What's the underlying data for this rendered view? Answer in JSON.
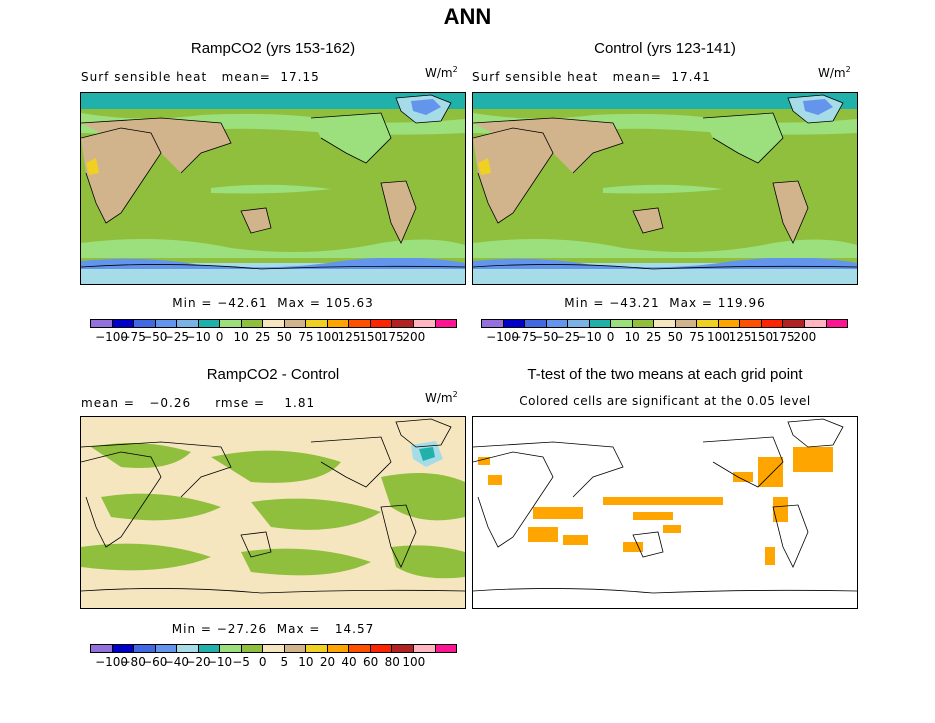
{
  "title": "ANN",
  "panels": {
    "ramp": {
      "title": "RampCO2 (yrs 153-162)",
      "label": "Surf sensible heat   mean=  17.15",
      "units": "W/m",
      "units_exp": "2",
      "minmax": "Min = −42.61  Max = 105.63"
    },
    "control": {
      "title": "Control (yrs 123-141)",
      "label": "Surf sensible heat   mean=  17.41",
      "units": "W/m",
      "units_exp": "2",
      "minmax": "Min = −43.21  Max = 119.96"
    },
    "diff": {
      "title": "RampCO2 - Control",
      "label": "mean =   −0.26     rmse =    1.81",
      "units": "W/m",
      "units_exp": "2",
      "minmax": "Min = −27.26  Max =   14.57"
    },
    "ttest": {
      "title": "T-test of the two means at each grid point",
      "subtitle": "Colored cells are significant at the 0.05 level"
    }
  },
  "colorbars": {
    "field": {
      "colors": [
        "#9370db",
        "#0000c8",
        "#4169e1",
        "#6495ed",
        "#7ab2e6",
        "#20b2aa",
        "#9be07c",
        "#8fbf3c",
        "#f5e6c0",
        "#d2b48c",
        "#f0d020",
        "#ffa500",
        "#ff5000",
        "#ff2400",
        "#b22222",
        "#ffb6c1",
        "#ff1493"
      ],
      "ticks": [
        "−100",
        "−75",
        "−50",
        "−25",
        "−10",
        "0",
        "10",
        "25",
        "50",
        "75",
        "100",
        "125",
        "150",
        "175",
        "200"
      ]
    },
    "diff": {
      "colors": [
        "#9370db",
        "#0000c8",
        "#4169e1",
        "#6495ed",
        "#a6dce8",
        "#20b2aa",
        "#9be07c",
        "#8fbf3c",
        "#f5e6c0",
        "#d2b48c",
        "#f0d020",
        "#ffa500",
        "#ff5000",
        "#ff2400",
        "#b22222",
        "#ffb6c1",
        "#ff1493"
      ],
      "ticks": [
        "−100",
        "−80",
        "−60",
        "−40",
        "−20",
        "−10",
        "−5",
        "0",
        "5",
        "10",
        "20",
        "40",
        "60",
        "80",
        "100"
      ]
    }
  },
  "map_colors": {
    "ocean_field": "#8fbf3c",
    "light_green": "#9be07c",
    "tan": "#d2b48c",
    "beige": "#f5e6c0",
    "teal": "#20b2aa",
    "ice": "#a6dce8",
    "blue": "#6495ed",
    "yellow": "#f0d020",
    "sig": "#ffa500"
  }
}
